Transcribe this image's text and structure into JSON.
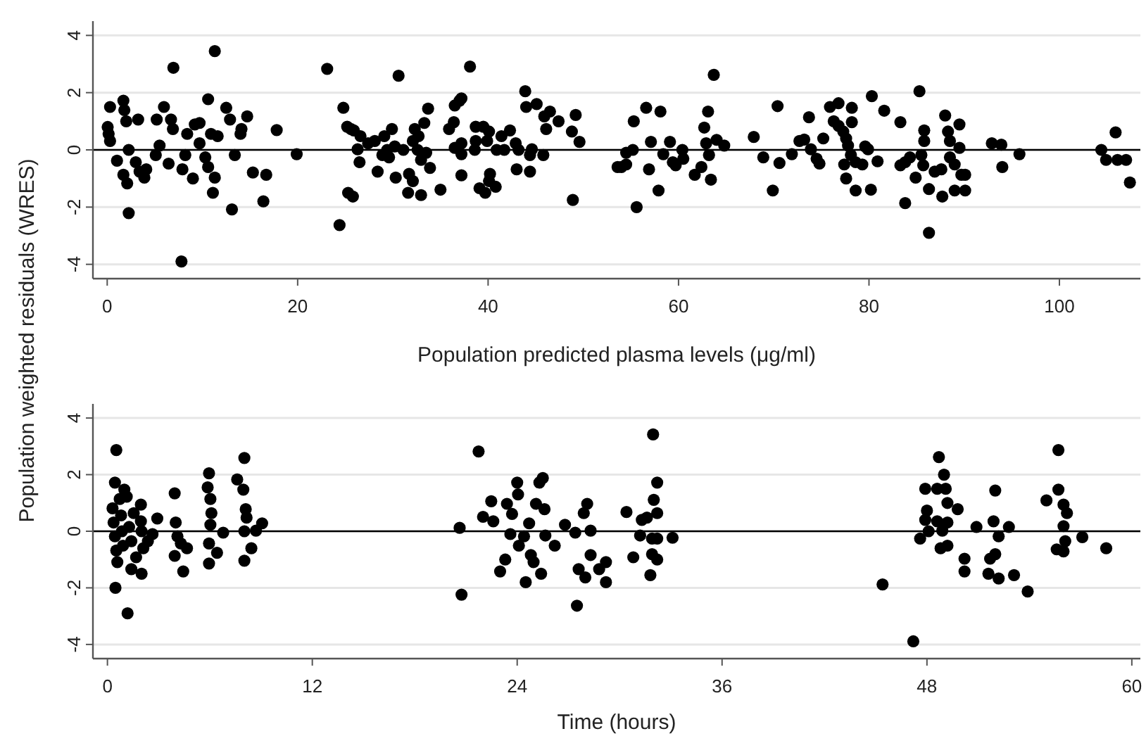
{
  "chart_data": [
    {
      "type": "scatter",
      "ylabel": "Population weighted residuals (WRES)",
      "xlabel": "Population predicted plasma levels (μg/ml)",
      "xlim": [
        -1.5,
        108.5
      ],
      "ylim": [
        -4.5,
        4.5
      ],
      "xticks": [
        0,
        20,
        40,
        60,
        80,
        100
      ],
      "yticks": [
        -4,
        -2,
        0,
        2,
        4
      ],
      "grid": "y",
      "marker": "circle",
      "ref_lines": [
        {
          "axis": "y",
          "value": 0,
          "color": "#000000"
        }
      ],
      "x": [
        0.3,
        0.05,
        0.15,
        0.3,
        1.7,
        1.8,
        2.0,
        3.25,
        2.26,
        1.03,
        1.7,
        2.1,
        2.26,
        3.0,
        3.4,
        3.9,
        4.1,
        5.2,
        5.96,
        6.7,
        6.9,
        5.5,
        5.1,
        6.45,
        6.95,
        7.9,
        8.2,
        8.4,
        9.0,
        9.2,
        9.7,
        9.7,
        7.8,
        10.3,
        10.6,
        10.6,
        10.9,
        11.3,
        11.1,
        11.3,
        11.6,
        12.5,
        12.9,
        13.4,
        13.1,
        14.0,
        14.1,
        14.7,
        15.3,
        16.7,
        16.4,
        17.8,
        19.9,
        23.1,
        24.4,
        24.8,
        25.2,
        25.6,
        25.9,
        26.6,
        26.3,
        26.5,
        25.3,
        25.8,
        27.4,
        28.1,
        28.4,
        28.9,
        29.1,
        29.4,
        29.9,
        29.6,
        30.2,
        30.6,
        30.3,
        31.1,
        31.6,
        31.7,
        32.1,
        32.1,
        32.3,
        32.7,
        32.6,
        32.96,
        32.96,
        33.3,
        33.7,
        33.5,
        33.9,
        35.0,
        35.9,
        36.4,
        36.5,
        37.0,
        37.2,
        36.5,
        37.2,
        37.2,
        37.2,
        38.1,
        38.7,
        38.6,
        38.7,
        39.5,
        39.9,
        40.1,
        39.1,
        39.7,
        40.2,
        40.1,
        40.8,
        40.9,
        41.4,
        41.7,
        42.3,
        42.9,
        43.2,
        43.0,
        43.9,
        44.0,
        44.4,
        44.6,
        44.4,
        45.1,
        45.8,
        46.1,
        45.9,
        46.5,
        47.4,
        48.8,
        49.2,
        49.6,
        48.9,
        53.6,
        54.0,
        54.5,
        54.5,
        55.2,
        55.3,
        55.6,
        56.6,
        57.1,
        56.9,
        57.9,
        58.1,
        58.4,
        59.1,
        59.4,
        59.7,
        60.4,
        60.5,
        61.7,
        62.4,
        62.7,
        63.1,
        62.9,
        63.2,
        63.4,
        63.7,
        64.0,
        64.8,
        67.9,
        68.9,
        70.4,
        70.6,
        69.9,
        71.9,
        72.7,
        73.2,
        73.7,
        73.9,
        74.5,
        74.8,
        75.2,
        75.9,
        76.8,
        76.3,
        76.8,
        77.3,
        77.6,
        77.8,
        78.2,
        78.2,
        78.1,
        77.4,
        77.6,
        78.6,
        78.6,
        79.3,
        79.6,
        79.9,
        80.2,
        80.3,
        80.9,
        81.6,
        83.3,
        83.3,
        83.8,
        84.3,
        83.8,
        84.9,
        85.3,
        85.8,
        85.8,
        85.5,
        85.7,
        86.3,
        86.3,
        86.9,
        87.7,
        87.6,
        88.0,
        88.3,
        88.5,
        88.5,
        89.0,
        89.5,
        89.5,
        89.7,
        90.1,
        89.0,
        90.1,
        92.9,
        93.9,
        94.0,
        95.8,
        104.4,
        104.9,
        105.9,
        106.1,
        107.0,
        107.4
      ],
      "series": [
        {
          "color": "#000000",
          "values": [
            1.5,
            0.8,
            0.56,
            0.31,
            1.72,
            1.39,
            1.0,
            1.06,
            0,
            -0.38,
            -0.87,
            -1.17,
            -2.21,
            -0.43,
            -0.76,
            -0.97,
            -0.68,
            1.06,
            1.5,
            1.06,
            0.73,
            0.15,
            -0.18,
            -0.48,
            2.87,
            -0.68,
            -0.18,
            0.56,
            -1.0,
            0.89,
            0.94,
            0.23,
            -3.9,
            -0.26,
            -0.6,
            1.77,
            0.56,
            3.45,
            -1.5,
            -0.97,
            0.48,
            1.47,
            1.06,
            -0.18,
            -2.08,
            0.56,
            0.73,
            1.17,
            -0.79,
            -0.87,
            -1.8,
            0.69,
            -0.15,
            2.83,
            -2.63,
            1.47,
            0.81,
            0.73,
            0.68,
            0.48,
            0.02,
            -0.43,
            -1.5,
            -1.63,
            0.23,
            0.31,
            -0.76,
            -0.18,
            0.48,
            0,
            0.73,
            -0.26,
            0.12,
            2.59,
            -0.97,
            0,
            -1.5,
            -0.84,
            -1.09,
            0.31,
            0.73,
            0.48,
            0,
            -0.35,
            -1.58,
            0.94,
            1.44,
            -0.1,
            -0.63,
            -1.39,
            0.73,
            0.97,
            1.55,
            1.72,
            1.8,
            0.07,
            0.23,
            -0.15,
            -0.89,
            2.91,
            0.81,
            0,
            0.31,
            0.81,
            0.31,
            0.64,
            -1.34,
            -1.5,
            -0.84,
            -1.09,
            -1.29,
            0,
            0.48,
            0,
            0.68,
            0.23,
            0,
            -0.68,
            2.05,
            1.5,
            -0.76,
            0.02,
            -0.18,
            1.6,
            -0.18,
            0.73,
            1.17,
            1.34,
            1.0,
            0.64,
            1.22,
            0.28,
            -1.75,
            -0.6,
            -0.6,
            -0.51,
            -0.1,
            0,
            1.0,
            -2.0,
            1.47,
            0.28,
            -0.68,
            -1.42,
            1.34,
            -0.15,
            0.28,
            -0.43,
            -0.54,
            0,
            -0.31,
            -0.87,
            -0.6,
            0.78,
            1.34,
            0.23,
            -0.18,
            -1.04,
            2.62,
            0.35,
            0.15,
            0.45,
            -0.26,
            1.53,
            -0.46,
            -1.42,
            -0.15,
            0.31,
            0.36,
            1.14,
            0.02,
            -0.31,
            -0.48,
            0.4,
            1.5,
            1.63,
            1.0,
            0.84,
            0.64,
            0.4,
            0.15,
            1.47,
            0.97,
            -0.18,
            -0.51,
            -1.0,
            -1.42,
            -0.43,
            -0.51,
            0.12,
            0.02,
            -1.39,
            1.88,
            -0.4,
            1.37,
            0.97,
            -0.54,
            -0.43,
            -0.26,
            -1.86,
            -0.97,
            2.05,
            0.68,
            0.31,
            -0.18,
            -0.54,
            -1.37,
            -2.9,
            -0.76,
            -1.63,
            -0.68,
            1.2,
            0.64,
            0.31,
            -0.26,
            -0.51,
            0.89,
            0.07,
            -0.87,
            -0.87,
            -1.42,
            -1.42,
            0.23,
            0.18,
            -0.6,
            -0.15,
            0,
            -0.35,
            0.61,
            -0.35,
            -0.35,
            -1.14
          ]
        }
      ]
    },
    {
      "type": "scatter",
      "xlabel": "Time (hours)",
      "xlim": [
        -0.85,
        60.5
      ],
      "ylim": [
        -4.5,
        4.5
      ],
      "xticks": [
        0,
        12,
        24,
        36,
        48,
        60
      ],
      "yticks": [
        -4,
        -2,
        0,
        2,
        4
      ],
      "grid": "y",
      "marker": "circle",
      "ref_lines": [
        {
          "axis": "y",
          "value": 0,
          "color": "#000000"
        }
      ],
      "x": [
        0.52,
        0.44,
        0.3,
        0.36,
        0.44,
        0.52,
        0.58,
        0.47,
        0.72,
        0.8,
        0.85,
        0.91,
        0.99,
        1.13,
        1.18,
        1.27,
        1.4,
        1.4,
        1.68,
        1.54,
        1.96,
        1.96,
        2.0,
        2.1,
        2.0,
        2.37,
        2.64,
        2.92,
        3.94,
        4.0,
        4.1,
        3.94,
        4.3,
        4.44,
        4.66,
        5.95,
        5.87,
        6.03,
        6.09,
        6.03,
        5.95,
        5.95,
        6.42,
        6.78,
        8.02,
        7.6,
        7.96,
        8.1,
        8.15,
        8.02,
        8.43,
        8.02,
        8.7,
        9.06,
        20.63,
        20.74,
        21.74,
        22.0,
        22.48,
        22.6,
        23.0,
        23.3,
        23.4,
        23.6,
        23.7,
        24.0,
        24.05,
        24.1,
        24.4,
        24.5,
        24.7,
        24.8,
        24.96,
        25.1,
        25.3,
        25.5,
        25.6,
        25.4,
        25.65,
        26.2,
        26.8,
        27.4,
        27.5,
        27.6,
        27.99,
        27.9,
        28.1,
        28.3,
        28.3,
        28.8,
        29.2,
        29.2,
        30.4,
        31.2,
        30.8,
        31.3,
        31.6,
        31.96,
        32.2,
        32.0,
        32.2,
        31.9,
        32.2,
        31.9,
        32.2,
        31.8,
        33.1,
        45.4,
        47.2,
        47.6,
        47.9,
        48.0,
        47.9,
        48.1,
        48.7,
        48.6,
        49.0,
        49.1,
        49.2,
        48.6,
        49.2,
        48.9,
        48.8,
        49.2,
        49.8,
        50.2,
        50.2,
        50.9,
        51.6,
        51.7,
        51.9,
        52.0,
        52.0,
        52.2,
        52.2,
        52.8,
        53.1,
        53.9,
        55.0,
        55.7,
        55.7,
        56.0,
        56.2,
        56.0,
        56.1,
        55.6,
        56.0,
        57.1,
        58.5
      ],
      "series": [
        {
          "color": "#000000",
          "values": [
            2.87,
            1.72,
            0.81,
            0.31,
            -0.18,
            -0.68,
            -1.09,
            -2.0,
            1.14,
            0.56,
            0,
            -0.51,
            1.47,
            1.22,
            -2.9,
            0.15,
            -0.35,
            -1.34,
            -0.92,
            0.64,
            0.94,
            0.35,
            0,
            -0.6,
            -1.5,
            -0.35,
            -0.1,
            0.45,
            1.34,
            0.31,
            -0.18,
            -0.87,
            -0.43,
            -1.42,
            -0.6,
            2.05,
            1.55,
            1.14,
            0.64,
            0.23,
            -0.43,
            -1.14,
            -0.76,
            -0.05,
            2.59,
            1.83,
            1.47,
            0.78,
            0.48,
            0,
            -0.6,
            -1.04,
            0.02,
            0.28,
            0.12,
            -2.24,
            2.82,
            0.51,
            1.06,
            0.35,
            -1.42,
            -1.0,
            0.97,
            -0.1,
            0.61,
            1.72,
            1.3,
            -0.51,
            -0.18,
            -1.8,
            0.28,
            -0.84,
            -1.09,
            0.97,
            1.72,
            1.88,
            0.78,
            -1.5,
            -0.15,
            -0.51,
            0.23,
            -0.05,
            -2.63,
            -1.34,
            -1.63,
            0.64,
            0.97,
            0.02,
            -0.84,
            -1.34,
            -1.8,
            -1.09,
            0.68,
            -0.15,
            -0.92,
            0.4,
            0.48,
            3.42,
            1.72,
            1.11,
            0.64,
            -0.26,
            -0.26,
            -0.81,
            -1.0,
            -1.55,
            -0.23,
            -1.88,
            -3.89,
            -0.26,
            1.5,
            0.73,
            0.4,
            0,
            2.62,
            1.5,
            2.0,
            1.5,
            1.0,
            0.35,
            0.31,
            0.02,
            -0.6,
            -0.51,
            0.78,
            -0.97,
            -1.42,
            0.15,
            -1.5,
            -0.97,
            0.35,
            1.44,
            -0.81,
            -0.18,
            -1.67,
            0.15,
            -1.55,
            -2.13,
            1.09,
            2.87,
            1.47,
            0.94,
            0.64,
            0.18,
            -0.35,
            -0.64,
            -0.71,
            -0.21,
            -0.6
          ]
        }
      ]
    }
  ]
}
